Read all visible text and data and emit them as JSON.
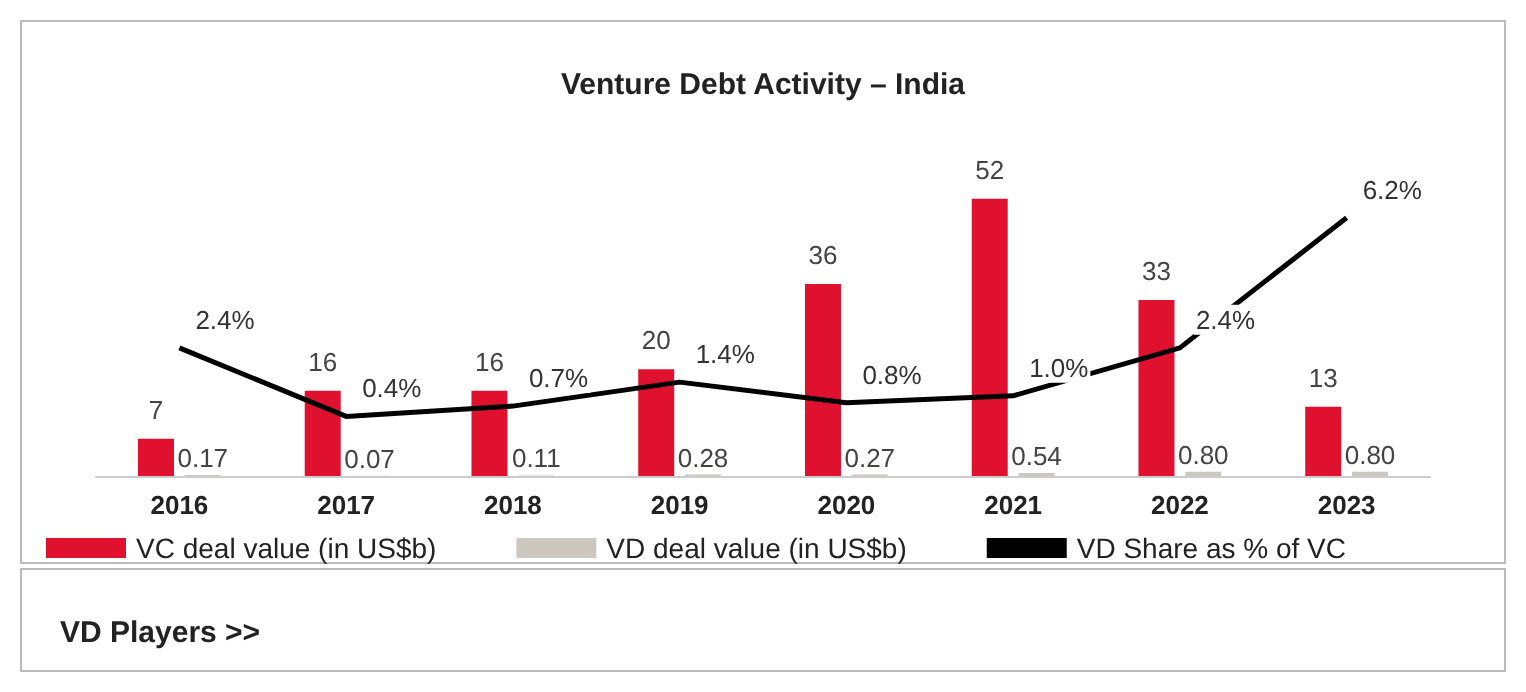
{
  "chart_data": {
    "type": "bar",
    "title": "Venture Debt Activity – India",
    "categories": [
      "2016",
      "2017",
      "2018",
      "2019",
      "2020",
      "2021",
      "2022",
      "2023"
    ],
    "series": [
      {
        "name": "VC deal value (in US$b)",
        "color": "#e0102f",
        "values": [
          7,
          16,
          16,
          20,
          36,
          52,
          33,
          13
        ],
        "value_labels": [
          "7",
          "16",
          "16",
          "20",
          "36",
          "52",
          "33",
          "13"
        ]
      },
      {
        "name": "VD deal value (in US$b)",
        "color": "#ccc8c0",
        "values": [
          0.17,
          0.07,
          0.11,
          0.28,
          0.27,
          0.54,
          0.8,
          0.8
        ],
        "value_labels": [
          "0.17",
          "0.07",
          "0.11",
          "0.28",
          "0.27",
          "0.54",
          "0.80",
          "0.80"
        ]
      },
      {
        "name": "VD Share as % of VC",
        "type": "line",
        "axis": "y2",
        "color": "#000000",
        "values": [
          2.4,
          0.4,
          0.7,
          1.4,
          0.8,
          1.0,
          2.4,
          6.2
        ],
        "value_labels": [
          "2.4%",
          "0.4%",
          "0.7%",
          "1.4%",
          "0.8%",
          "1.0%",
          "2.4%",
          "6.2%"
        ]
      }
    ],
    "legend": "bottom",
    "marker": "none",
    "grid": false,
    "annotations": [
      "VD Players >>"
    ]
  }
}
